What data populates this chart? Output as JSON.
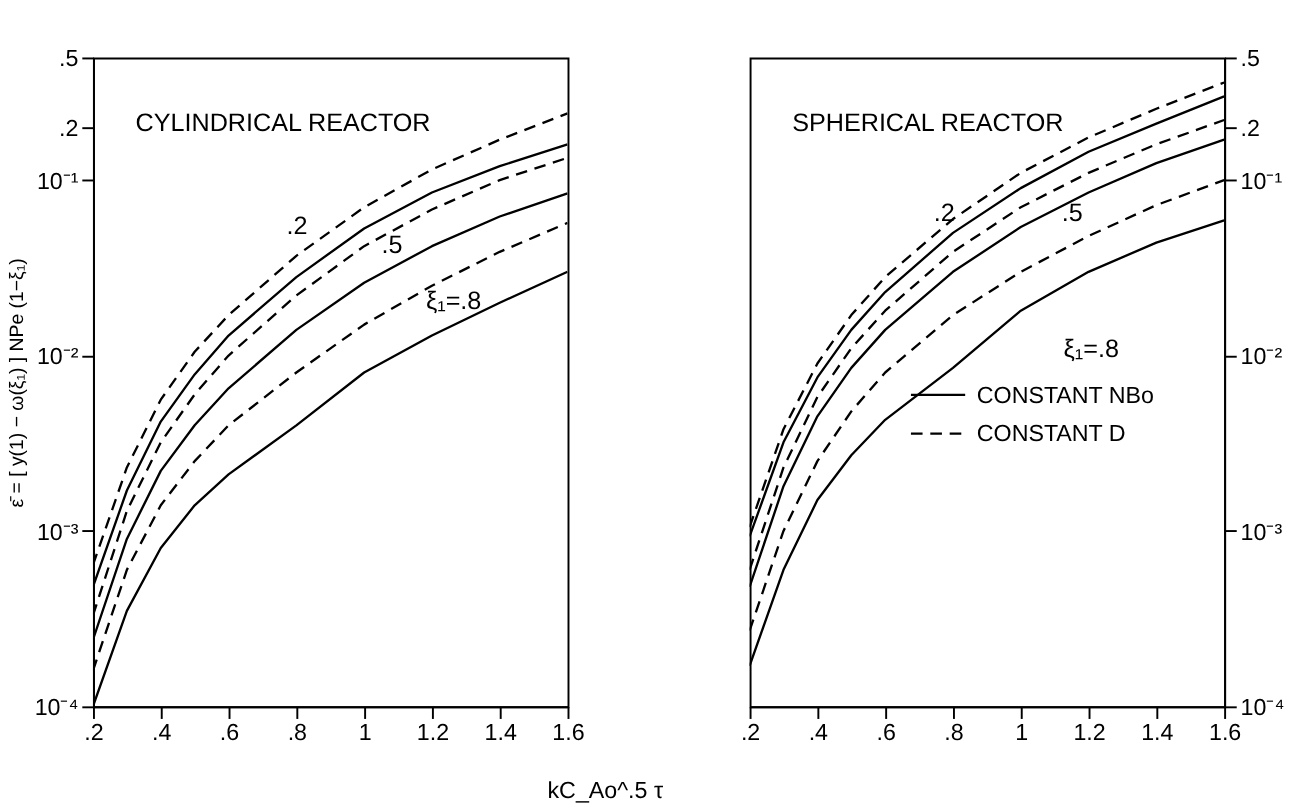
{
  "chart_data": [
    {
      "type": "line",
      "title": "CYLINDRICAL REACTOR",
      "xlabel": "kC_Ao^.5 τ",
      "ylabel": "ε̄ = [ y(1) − ω(ξ₁) ] NPe (1−ξ₁)",
      "x": [
        0.2,
        0.3,
        0.4,
        0.5,
        0.6,
        0.8,
        1.0,
        1.2,
        1.4,
        1.6
      ],
      "series": [
        {
          "color": "#000000",
          "line_style": "solid",
          "values": [
            0.00048,
            0.0017,
            0.0042,
            0.0078,
            0.013,
            0.028,
            0.053,
            0.085,
            0.12,
            0.16
          ]
        },
        {
          "color": "#000000",
          "line_style": "dashed",
          "values": [
            0.00064,
            0.0023,
            0.0056,
            0.0105,
            0.017,
            0.037,
            0.07,
            0.115,
            0.17,
            0.24
          ]
        },
        {
          "color": "#000000",
          "line_style": "solid",
          "values": [
            0.00024,
            0.0009,
            0.0022,
            0.004,
            0.0065,
            0.014,
            0.026,
            0.042,
            0.062,
            0.084
          ]
        },
        {
          "color": "#000000",
          "line_style": "dashed",
          "values": [
            0.00033,
            0.0013,
            0.0032,
            0.006,
            0.01,
            0.022,
            0.042,
            0.068,
            0.1,
            0.134
          ]
        },
        {
          "color": "#000000",
          "line_style": "solid",
          "values": [
            0.0001,
            0.00035,
            0.0008,
            0.0014,
            0.0021,
            0.004,
            0.008,
            0.013,
            0.02,
            0.03
          ]
        },
        {
          "color": "#000000",
          "line_style": "dashed",
          "values": [
            0.00016,
            0.0006,
            0.0014,
            0.0025,
            0.004,
            0.008,
            0.015,
            0.025,
            0.039,
            0.057
          ]
        }
      ],
      "xlim": [
        0.2,
        1.6
      ],
      "xticks": [
        {
          "value": 0.2,
          "label": ".2"
        },
        {
          "value": 0.4,
          "label": ".4"
        },
        {
          "value": 0.6,
          "label": ".6"
        },
        {
          "value": 0.8,
          "label": ".8"
        },
        1,
        1.2,
        1.4,
        1.6
      ],
      "ylim": [
        0.0001,
        0.5
      ],
      "yticks": [
        {
          "value": 0.0001,
          "label": "10⁻⁴"
        },
        {
          "value": 0.001,
          "label": "10⁻³"
        },
        {
          "value": 0.01,
          "label": "10⁻²"
        },
        {
          "value": 0.1,
          "label": "10⁻¹"
        },
        {
          "value": 0.2,
          "label": ".2"
        },
        {
          "value": 0.5,
          "label": ".5"
        }
      ],
      "log": "y",
      "grid": false,
      "legend": false,
      "annotations": [
        ".2",
        ".5",
        "ξ₁=.8"
      ]
    },
    {
      "type": "line",
      "title": "SPHERICAL REACTOR",
      "x": [
        0.2,
        0.3,
        0.4,
        0.5,
        0.6,
        0.8,
        1.0,
        1.2,
        1.4,
        1.6
      ],
      "series": [
        {
          "name": "CONSTANT NBo",
          "color": "#000000",
          "line_style": "solid",
          "axis": "y2",
          "values": [
            0.00093,
            0.0032,
            0.0075,
            0.014,
            0.023,
            0.05,
            0.09,
            0.145,
            0.21,
            0.3
          ]
        },
        {
          "name": "CONSTANT D",
          "color": "#000000",
          "line_style": "dashed",
          "axis": "y2",
          "values": [
            0.00105,
            0.0038,
            0.009,
            0.017,
            0.028,
            0.06,
            0.11,
            0.175,
            0.255,
            0.36
          ]
        },
        {
          "color": "#000000",
          "line_style": "solid",
          "axis": "y2",
          "values": [
            0.00048,
            0.0018,
            0.0045,
            0.0085,
            0.014,
            0.03,
            0.054,
            0.085,
            0.125,
            0.17
          ]
        },
        {
          "color": "#000000",
          "line_style": "dashed",
          "axis": "y2",
          "values": [
            0.0006,
            0.0023,
            0.0058,
            0.011,
            0.018,
            0.039,
            0.07,
            0.11,
            0.16,
            0.22
          ]
        },
        {
          "color": "#000000",
          "line_style": "solid",
          "axis": "y2",
          "values": [
            0.00017,
            0.0006,
            0.0015,
            0.0027,
            0.0043,
            0.0085,
            0.018,
            0.03,
            0.044,
            0.059
          ]
        },
        {
          "color": "#000000",
          "line_style": "dashed",
          "axis": "y2",
          "values": [
            0.00027,
            0.001,
            0.0025,
            0.0048,
            0.008,
            0.017,
            0.03,
            0.048,
            0.072,
            0.1
          ]
        }
      ],
      "xlim": [
        0.2,
        1.6
      ],
      "xticks": [
        {
          "value": 0.2,
          "label": ".2"
        },
        {
          "value": 0.4,
          "label": ".4"
        },
        {
          "value": 0.6,
          "label": ".6"
        },
        {
          "value": 0.8,
          "label": ".8"
        },
        1,
        1.2,
        1.4,
        1.6
      ],
      "y2lim": [
        0.0001,
        0.5
      ],
      "y2ticks": [
        {
          "value": 0.0001,
          "label": "10⁻⁴"
        },
        {
          "value": 0.001,
          "label": "10⁻³"
        },
        {
          "value": 0.01,
          "label": "10⁻²"
        },
        {
          "value": 0.1,
          "label": "10⁻¹"
        },
        {
          "value": 0.2,
          "label": ".2"
        },
        {
          "value": 0.5,
          "label": ".5"
        }
      ],
      "log": "y2",
      "grid": false,
      "legend": "right",
      "annotations": [
        ".2",
        ".5",
        "ξ₁=.8"
      ]
    }
  ]
}
